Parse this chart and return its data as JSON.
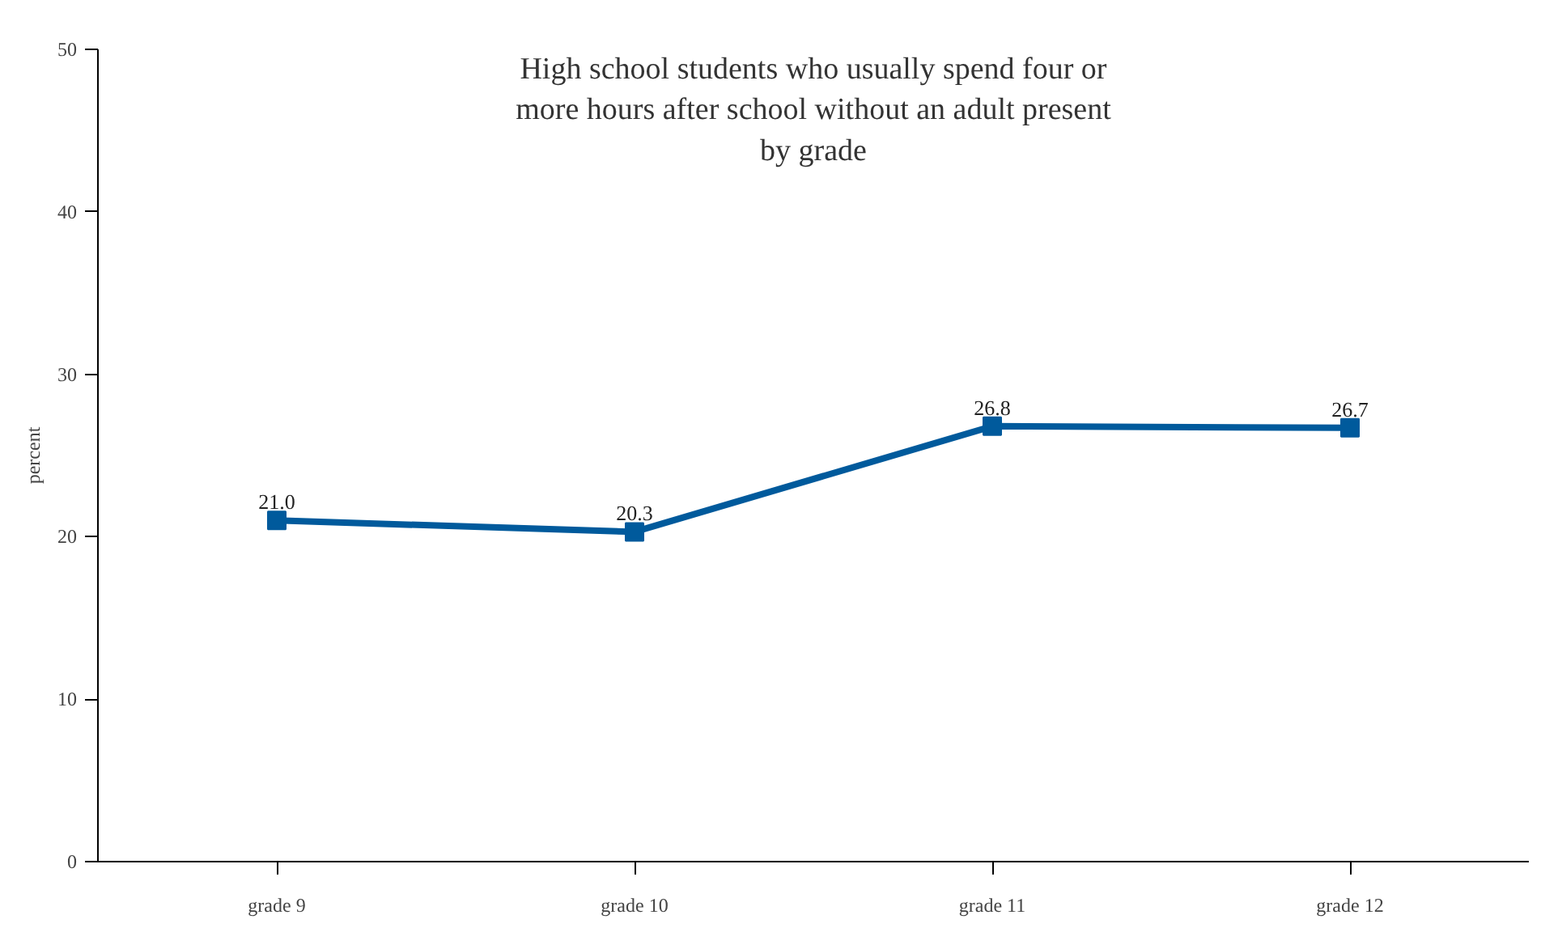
{
  "chart_data": {
    "type": "line",
    "title": "High school students who usually spend four or\nmore hours after school without an adult present\nby grade",
    "ylabel": "percent",
    "categories": [
      "grade 9",
      "grade 10",
      "grade 11",
      "grade 12"
    ],
    "series": [
      {
        "color": "#005a9c",
        "values": [
          21.0,
          20.3,
          26.8,
          26.7
        ],
        "value_labels": [
          "21.0",
          "20.3",
          "26.8",
          "26.7"
        ]
      }
    ],
    "ylim": [
      0,
      50
    ],
    "yticks": [
      0,
      10,
      20,
      30,
      40,
      50
    ],
    "grid": false,
    "marker": "square",
    "line_style": "solid"
  }
}
